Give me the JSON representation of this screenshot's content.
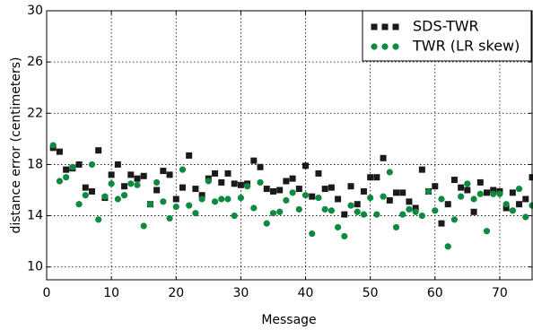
{
  "chart_data": {
    "type": "scatter",
    "xlabel": "Message",
    "ylabel": "distance error (centimeters)",
    "xlim": [
      0,
      75
    ],
    "ylim": [
      9,
      30
    ],
    "xticks": [
      0,
      10,
      20,
      30,
      40,
      50,
      60,
      70
    ],
    "yticks": [
      10,
      14,
      18,
      22,
      26,
      30
    ],
    "grid": true,
    "legend_position": "top-right",
    "series": [
      {
        "name": "SDS-TWR",
        "marker": "square",
        "color": "#1a1a1a",
        "x": [
          1,
          2,
          3,
          4,
          5,
          6,
          7,
          8,
          9,
          10,
          11,
          12,
          13,
          14,
          15,
          16,
          17,
          18,
          19,
          20,
          21,
          22,
          23,
          24,
          25,
          26,
          27,
          28,
          29,
          30,
          31,
          32,
          33,
          34,
          35,
          36,
          37,
          38,
          39,
          40,
          41,
          42,
          43,
          44,
          45,
          46,
          47,
          48,
          49,
          50,
          51,
          52,
          53,
          54,
          55,
          56,
          57,
          58,
          59,
          60,
          61,
          62,
          63,
          64,
          65,
          66,
          67,
          68,
          69,
          70,
          71,
          72,
          73,
          74,
          75
        ],
        "y": [
          19.3,
          19.0,
          17.6,
          17.7,
          18.0,
          16.2,
          15.9,
          19.1,
          15.4,
          17.2,
          18.0,
          16.3,
          17.2,
          16.9,
          17.1,
          14.9,
          16.0,
          17.5,
          17.2,
          15.3,
          16.2,
          18.7,
          16.1,
          15.6,
          16.9,
          17.3,
          16.6,
          17.3,
          16.5,
          16.4,
          16.5,
          18.3,
          17.8,
          16.1,
          15.9,
          16.0,
          16.7,
          16.9,
          16.1,
          17.9,
          15.5,
          17.3,
          16.1,
          16.2,
          15.3,
          14.1,
          16.3,
          14.9,
          15.9,
          17.0,
          17.0,
          18.5,
          15.2,
          15.8,
          15.8,
          15.1,
          14.6,
          17.6,
          15.9,
          16.3,
          13.4,
          14.9,
          16.8,
          16.2,
          16.0,
          14.3,
          16.6,
          15.8,
          16.0,
          15.9,
          14.6,
          15.8,
          14.9,
          15.3,
          17.0
        ]
      },
      {
        "name": "TWR (LR skew)",
        "marker": "circle",
        "color": "#0e8a3e",
        "x": [
          1,
          2,
          3,
          4,
          5,
          6,
          7,
          8,
          9,
          10,
          11,
          12,
          13,
          14,
          15,
          16,
          17,
          18,
          19,
          20,
          21,
          22,
          23,
          24,
          25,
          26,
          27,
          28,
          29,
          30,
          31,
          32,
          33,
          34,
          35,
          36,
          37,
          38,
          39,
          40,
          41,
          42,
          43,
          44,
          45,
          46,
          47,
          48,
          49,
          50,
          51,
          52,
          53,
          54,
          55,
          56,
          57,
          58,
          59,
          60,
          61,
          62,
          63,
          64,
          65,
          66,
          67,
          68,
          69,
          70,
          71,
          72,
          73,
          74,
          75
        ],
        "y": [
          19.5,
          16.7,
          17.0,
          17.8,
          14.9,
          15.6,
          18.0,
          13.7,
          15.5,
          16.5,
          15.3,
          15.6,
          16.5,
          16.4,
          13.2,
          14.9,
          16.6,
          15.1,
          13.8,
          14.7,
          17.6,
          14.8,
          14.2,
          15.3,
          16.7,
          15.1,
          15.3,
          15.3,
          14.0,
          15.4,
          16.3,
          14.6,
          16.6,
          13.4,
          14.2,
          14.3,
          15.2,
          15.8,
          14.5,
          15.6,
          12.6,
          15.4,
          14.5,
          14.4,
          13.1,
          12.4,
          14.8,
          14.3,
          14.1,
          15.4,
          14.1,
          15.5,
          17.4,
          13.1,
          14.1,
          14.5,
          14.3,
          14.0,
          15.9,
          14.4,
          15.3,
          11.6,
          13.7,
          15.5,
          16.5,
          15.3,
          15.7,
          12.8,
          15.7,
          15.7,
          14.9,
          14.4,
          16.1,
          13.9,
          14.8
        ]
      }
    ]
  }
}
